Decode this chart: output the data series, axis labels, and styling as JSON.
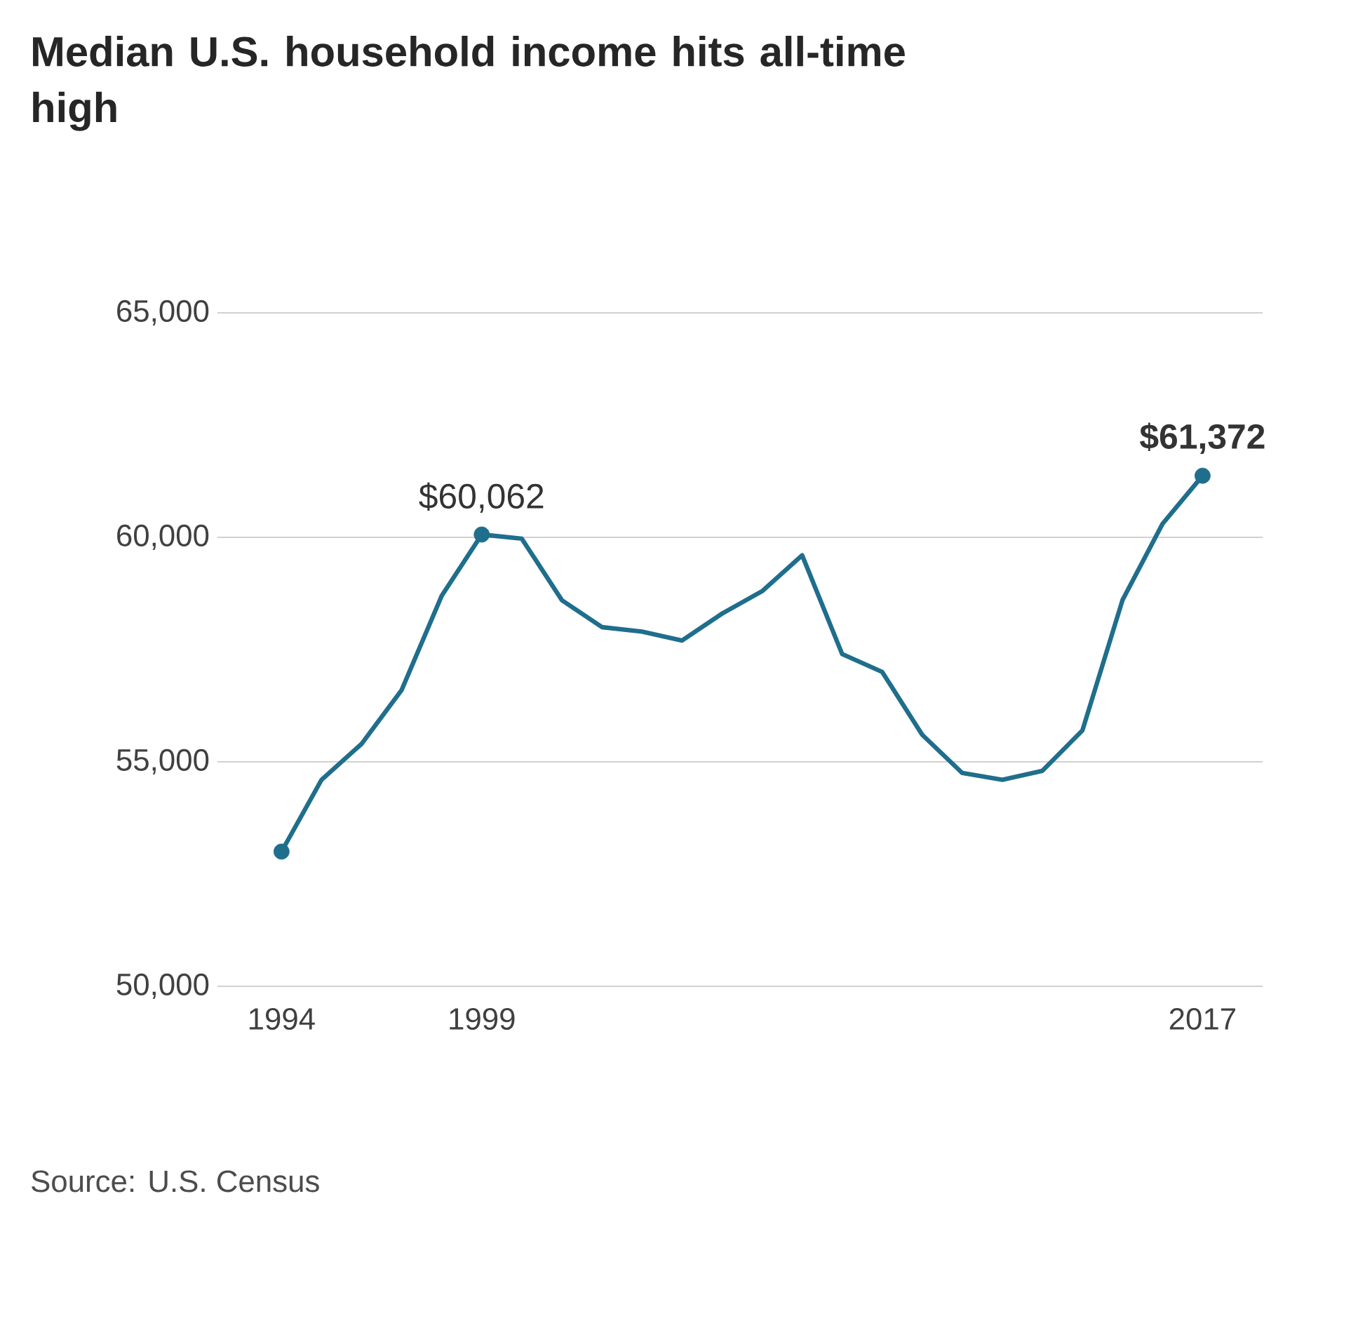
{
  "chart_data": {
    "type": "line",
    "title": "Median U.S. household income hits all-time high",
    "x": [
      1994,
      1995,
      1996,
      1997,
      1998,
      1999,
      2000,
      2001,
      2002,
      2003,
      2004,
      2005,
      2006,
      2007,
      2008,
      2009,
      2010,
      2011,
      2012,
      2013,
      2014,
      2015,
      2016,
      2017
    ],
    "series": [
      {
        "color": "#1f6e8c",
        "values": [
          53000,
          54600,
          55400,
          56600,
          58700,
          60062,
          59970,
          58600,
          58000,
          57900,
          57700,
          58300,
          58800,
          59600,
          57400,
          57000,
          55600,
          54750,
          54600,
          54800,
          55700,
          58600,
          60300,
          61372
        ]
      },
      {
        "type": "scatter",
        "color": "#1f6e8c",
        "x": [
          1994,
          1999,
          2017
        ],
        "values": [
          53000,
          60062,
          61372
        ]
      }
    ],
    "xlim": [
      1992.4,
      2018.5
    ],
    "ylim": [
      50000,
      65000
    ],
    "xticks": [
      1994,
      1999,
      2017
    ],
    "yticks": [
      {
        "value": 50000,
        "label": "50,000"
      },
      {
        "value": 55000,
        "label": "55,000"
      },
      {
        "value": 60000,
        "label": "60,000"
      },
      {
        "value": 65000,
        "label": "65,000"
      }
    ],
    "grid": "y",
    "line_style": "solid",
    "annotations": [
      {
        "text": "$60,062",
        "x": 1999,
        "y": 60062
      },
      {
        "text": "**$61,372**",
        "x": 2017,
        "y": 61372
      },
      "Source: U.S. Census"
    ]
  }
}
